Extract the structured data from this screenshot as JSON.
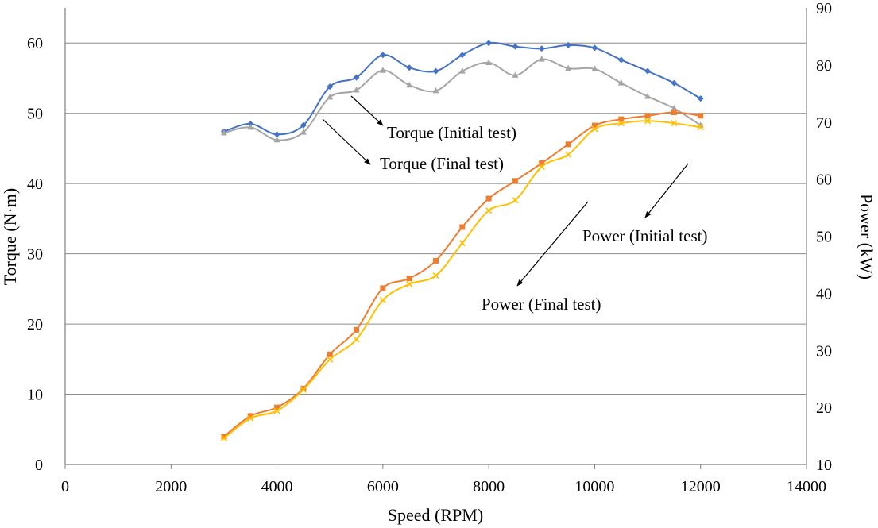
{
  "chart_data": {
    "type": "line",
    "title": "",
    "xlabel": "Speed (RPM)",
    "ylabel": "Torque (N·m)",
    "y2label": "Power (kW)",
    "xlim": [
      0,
      14000
    ],
    "ylim": [
      0,
      65
    ],
    "y2lim": [
      10,
      90
    ],
    "xticks": [
      "0",
      "2000",
      "4000",
      "6000",
      "8000",
      "10000",
      "12000",
      "14000"
    ],
    "yticks": [
      "0",
      "10",
      "20",
      "30",
      "40",
      "50",
      "60"
    ],
    "y2ticks": [
      "10",
      "20",
      "30",
      "40",
      "50",
      "60",
      "70",
      "80",
      "90"
    ],
    "grid": "horizontal",
    "x": [
      3000,
      3500,
      4000,
      4500,
      5000,
      5500,
      6000,
      6500,
      7000,
      7500,
      8000,
      8500,
      9000,
      9500,
      10000,
      10500,
      11000,
      11500,
      12000
    ],
    "series": [
      {
        "name": "Torque (Initial test)",
        "axis": "left",
        "color": "#4472C4",
        "marker": "diamond",
        "values": [
          47.4,
          48.5,
          47.0,
          48.3,
          53.8,
          55.1,
          58.3,
          56.5,
          56.0,
          58.3,
          60.0,
          59.5,
          59.2,
          59.7,
          59.3,
          57.6,
          56.0,
          54.3,
          52.1
        ]
      },
      {
        "name": "Torque (Final test)",
        "axis": "left",
        "color": "#A5A5A5",
        "marker": "triangle",
        "values": [
          47.2,
          48.0,
          46.2,
          47.3,
          52.3,
          53.3,
          56.1,
          54.0,
          53.2,
          56.0,
          57.2,
          55.4,
          57.7,
          56.4,
          56.3,
          54.3,
          52.4,
          50.7,
          48.3
        ]
      },
      {
        "name": "Power (Initial test)",
        "axis": "right",
        "color": "#ED7D31",
        "marker": "square",
        "values": [
          14.9,
          18.5,
          20.0,
          23.3,
          29.3,
          33.6,
          40.9,
          42.6,
          45.7,
          51.6,
          56.6,
          59.7,
          62.8,
          66.1,
          69.4,
          70.5,
          71.1,
          71.7,
          71.1
        ]
      },
      {
        "name": "Power (Final test)",
        "axis": "right",
        "color": "#FFC000",
        "marker": "x",
        "values": [
          14.6,
          18.1,
          19.4,
          23.1,
          28.4,
          31.9,
          38.8,
          41.6,
          43.1,
          48.8,
          54.5,
          56.3,
          62.2,
          64.3,
          68.8,
          69.8,
          70.2,
          69.8,
          69.1
        ]
      }
    ],
    "annotations": [
      {
        "text": "Torque (Initial test)",
        "points_to": "Torque (Initial test)"
      },
      {
        "text": "Torque (Final test)",
        "points_to": "Torque (Final test)"
      },
      {
        "text": "Power (Initial test)",
        "points_to": "Power (Initial test)"
      },
      {
        "text": "Power (Final test)",
        "points_to": "Power (Final test)"
      }
    ]
  }
}
